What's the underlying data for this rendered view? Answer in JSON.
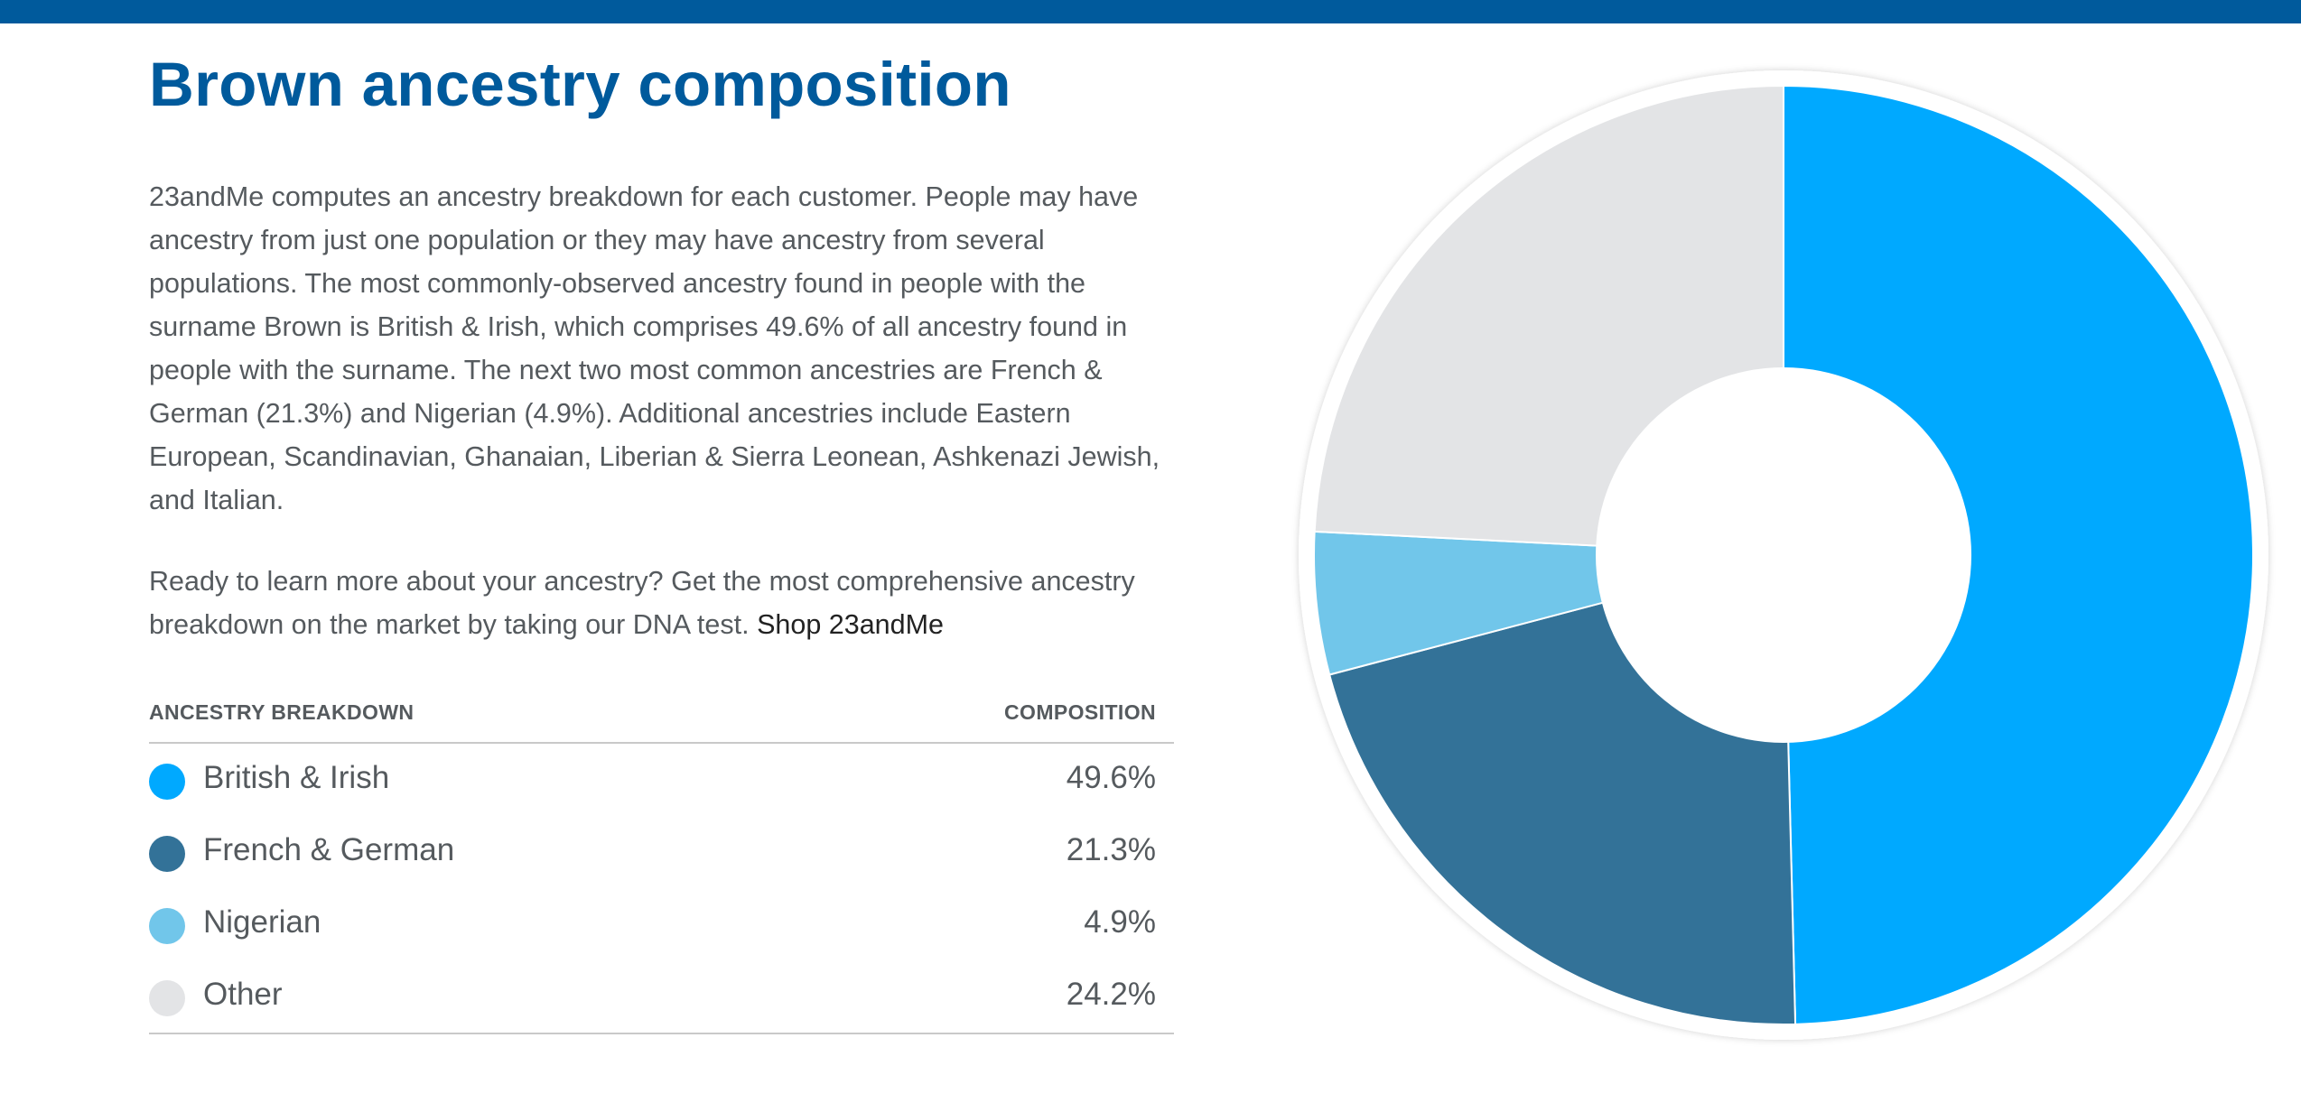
{
  "colors": {
    "top_bar": "#005a9c",
    "title": "#005a9c"
  },
  "title": "Brown ancestry composition",
  "intro_paragraph": "23andMe computes an ancestry breakdown for each customer. People may have ancestry from just one population or they may have ancestry from several populations. The most commonly-observed ancestry found in people with the surname Brown is British & Irish, which comprises 49.6% of all ancestry found in people with the surname. The next two most common ancestries are French & German (21.3%) and Nigerian (4.9%). Additional ancestries include Eastern European, Scandinavian, Ghanaian, Liberian & Sierra Leonean, Ashkenazi Jewish, and Italian.",
  "cta_paragraph": "Ready to learn more about your ancestry? Get the most comprehensive ancestry breakdown on the market by taking our DNA test.",
  "shop_link": "Shop 23andMe",
  "table": {
    "header_left": "ANCESTRY BREAKDOWN",
    "header_right": "COMPOSITION",
    "rows": [
      {
        "label": "British & Irish",
        "value": "49.6%",
        "color": "#00a9ff"
      },
      {
        "label": "French & German",
        "value": "21.3%",
        "color": "#337298"
      },
      {
        "label": "Nigerian",
        "value": "4.9%",
        "color": "#71c6ea"
      },
      {
        "label": "Other",
        "value": "24.2%",
        "color": "#e3e4e6"
      }
    ]
  },
  "chart_data": {
    "type": "pie",
    "variant": "donut",
    "categories": [
      "British & Irish",
      "French & German",
      "Nigerian",
      "Other"
    ],
    "values": [
      49.6,
      21.3,
      4.9,
      24.2
    ],
    "colors": [
      "#00a9ff",
      "#337298",
      "#71c6ea",
      "#e3e4e6"
    ],
    "start": "12 o'clock",
    "direction": "clockwise",
    "legend": "table-left"
  }
}
